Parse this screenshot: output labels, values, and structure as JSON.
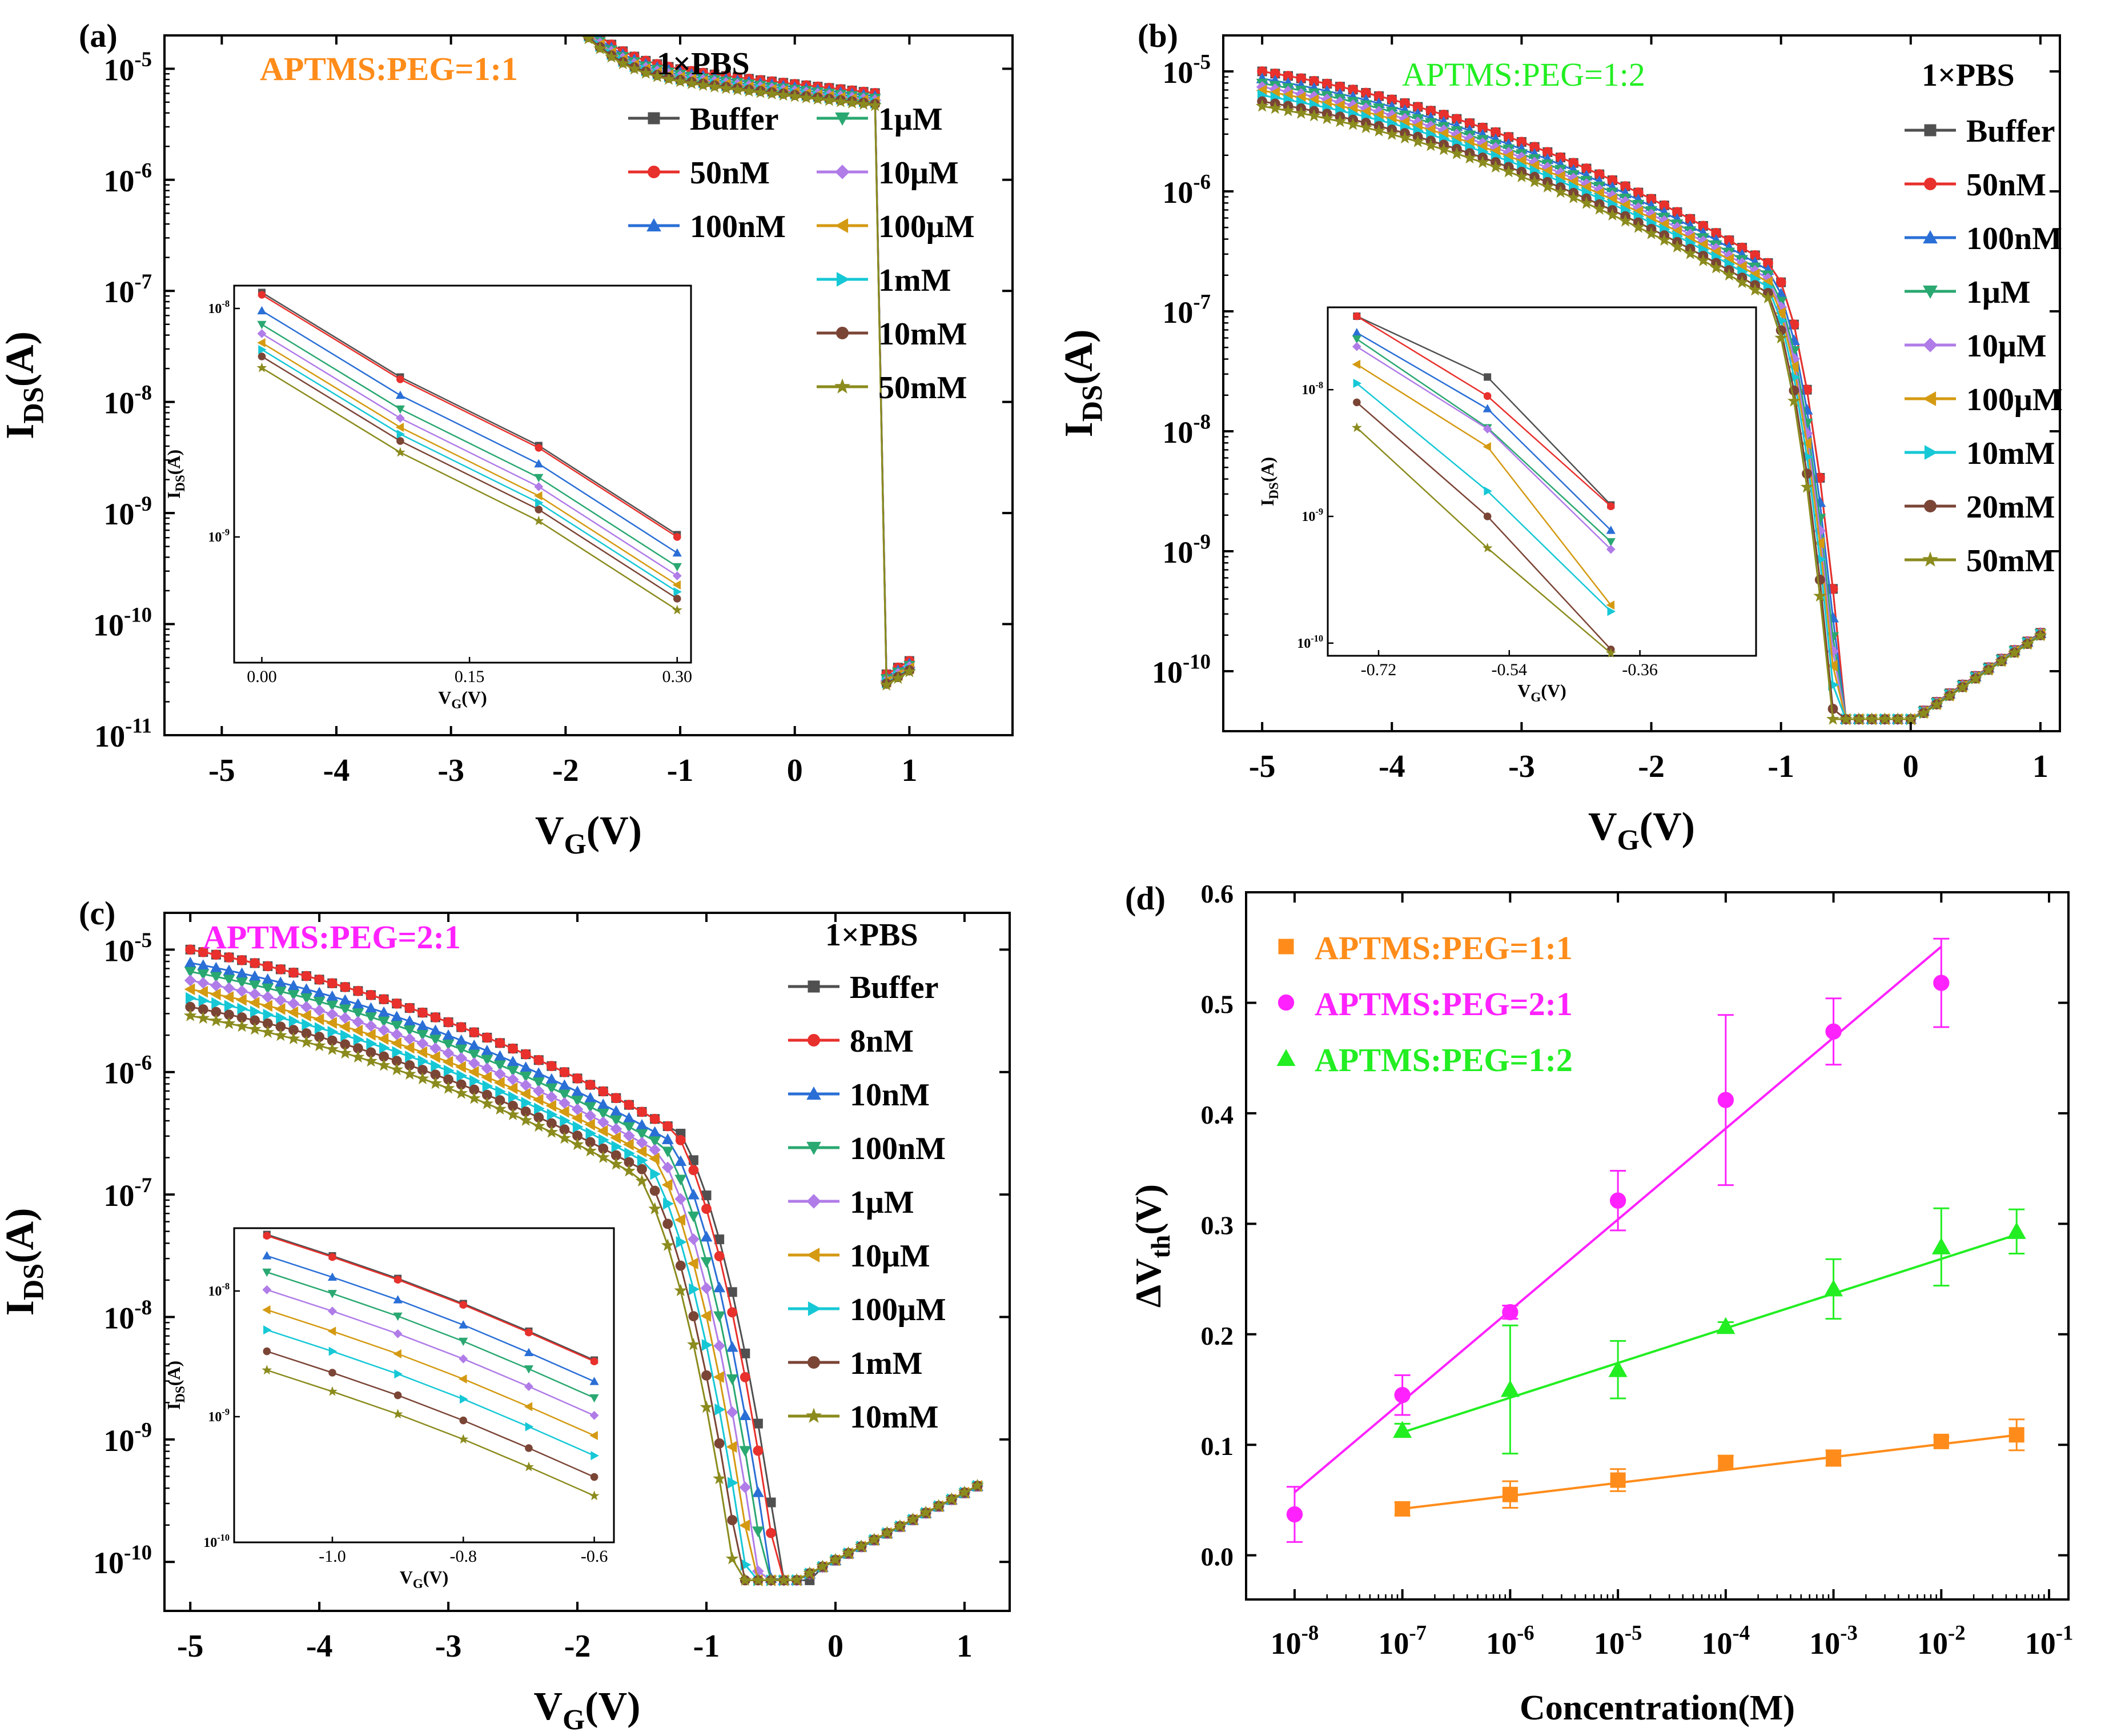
{
  "figure": {
    "panels_note": "Four-panel figure: transfer curves (a,b,c) and threshold-shift vs concentration (d)"
  },
  "chart_data": [
    {
      "id": "a",
      "type": "line",
      "panel_label": "(a)",
      "title": "APTMS:PEG=1:1",
      "title_color": "#ff8c1a",
      "legend_title": "1×PBS",
      "xlabel_main": "V",
      "xlabel_sub": "G",
      "xlabel_tail": "(V)",
      "ylabel_main": "I",
      "ylabel_sub": "DS",
      "ylabel_tail": "(A)",
      "yscale": "log",
      "xlim": [
        -5.5,
        1.9
      ],
      "ylim_exp": [
        -11,
        -4.7
      ],
      "xticks": [
        -5,
        -4,
        -3,
        -2,
        -1,
        0,
        1
      ],
      "yticks_exp": [
        -11,
        -10,
        -9,
        -8,
        -7,
        -6,
        -5
      ],
      "legend_columns": 2,
      "curve_model": "a",
      "series": [
        {
          "name": "Buffer",
          "color": "#505050",
          "marker": "square",
          "offset": 0.0
        },
        {
          "name": "50nM",
          "color": "#e8302c",
          "marker": "circle",
          "offset": 0.0
        },
        {
          "name": "100nM",
          "color": "#2a6fd6",
          "marker": "triangle-up",
          "offset": -0.08
        },
        {
          "name": "1μM",
          "color": "#2aa871",
          "marker": "triangle-down",
          "offset": -0.14
        },
        {
          "name": "10μM",
          "color": "#b07ce8",
          "marker": "diamond",
          "offset": -0.18
        },
        {
          "name": "100μM",
          "color": "#d49a12",
          "marker": "triangle-left",
          "offset": -0.22
        },
        {
          "name": "1mM",
          "color": "#16c8d6",
          "marker": "triangle-right",
          "offset": -0.25
        },
        {
          "name": "10mM",
          "color": "#7b4536",
          "marker": "circle",
          "offset": -0.28
        },
        {
          "name": "50mM",
          "color": "#8b8b1e",
          "marker": "star",
          "offset": -0.32
        }
      ],
      "inset": {
        "xlim": [
          -0.02,
          0.31
        ],
        "ylim_exp": [
          -9.55,
          -7.9
        ],
        "xticks": [
          0.0,
          0.15,
          0.3
        ],
        "xtick_labels": [
          "0.00",
          "0.15",
          "0.30"
        ],
        "yticks_exp": [
          -8,
          -9
        ],
        "xlabel_main": "V",
        "xlabel_sub": "G",
        "xlabel_tail": "(V)",
        "ylabel_main": "I",
        "ylabel_sub": "DS",
        "ylabel_tail": "(A)",
        "x": [
          0.0,
          0.1,
          0.2,
          0.3
        ],
        "base_log": [
          -7.93,
          -8.3,
          -8.6,
          -8.99
        ],
        "offsets": [
          0.0,
          -0.01,
          -0.08,
          -0.14,
          -0.18,
          -0.22,
          -0.25,
          -0.28,
          -0.33
        ]
      }
    },
    {
      "id": "b",
      "type": "line",
      "panel_label": "(b)",
      "title": "APTMS:PEG=1:2",
      "title_color": "#22ee22",
      "legend_title": "1×PBS",
      "xlabel_main": "V",
      "xlabel_sub": "G",
      "xlabel_tail": "(V)",
      "ylabel_main": "I",
      "ylabel_sub": "DS",
      "ylabel_tail": "(A)",
      "yscale": "log",
      "xlim": [
        -5.3,
        1.15
      ],
      "ylim_exp": [
        -10.5,
        -4.7
      ],
      "xticks": [
        -5,
        -4,
        -3,
        -2,
        -1,
        0,
        1
      ],
      "yticks_exp": [
        -10,
        -9,
        -8,
        -7,
        -6,
        -5
      ],
      "legend_columns": 1,
      "curve_model": "b",
      "series": [
        {
          "name": "Buffer",
          "color": "#505050",
          "marker": "square",
          "offset": 0.0
        },
        {
          "name": "50nM",
          "color": "#e8302c",
          "marker": "circle",
          "offset": 0.0
        },
        {
          "name": "100nM",
          "color": "#2a6fd6",
          "marker": "triangle-up",
          "offset": -0.06
        },
        {
          "name": "1μM",
          "color": "#2aa871",
          "marker": "triangle-down",
          "offset": -0.1
        },
        {
          "name": "10μM",
          "color": "#b07ce8",
          "marker": "diamond",
          "offset": -0.13
        },
        {
          "name": "100μM",
          "color": "#d49a12",
          "marker": "triangle-left",
          "offset": -0.16
        },
        {
          "name": "10mM",
          "color": "#16c8d6",
          "marker": "triangle-right",
          "offset": -0.2
        },
        {
          "name": "20mM",
          "color": "#7b4536",
          "marker": "circle",
          "offset": -0.25
        },
        {
          "name": "50mM",
          "color": "#8b8b1e",
          "marker": "star",
          "offset": -0.29
        }
      ],
      "inset": {
        "xlim": [
          -0.79,
          -0.2
        ],
        "ylim_exp": [
          -10.1,
          -7.35
        ],
        "xticks": [
          -0.72,
          -0.54,
          -0.36
        ],
        "xtick_labels": [
          "-0.72",
          "-0.54",
          "-0.36"
        ],
        "yticks_exp": [
          -8,
          -9,
          -10
        ],
        "xlabel_main": "V",
        "xlabel_sub": "G",
        "xlabel_tail": "(V)",
        "ylabel_main": "I",
        "ylabel_sub": "DS",
        "ylabel_tail": "(A)",
        "x": [
          -0.75,
          -0.57,
          -0.4
        ],
        "per_series_log": [
          [
            -7.42,
            -7.9,
            -8.91
          ],
          [
            -7.42,
            -8.05,
            -8.92
          ],
          [
            -7.55,
            -8.15,
            -9.11
          ],
          [
            -7.6,
            -8.3,
            -9.2
          ],
          [
            -7.66,
            -8.31,
            -9.26
          ],
          [
            -7.8,
            -8.45,
            -9.7
          ],
          [
            -7.95,
            -8.8,
            -9.75
          ],
          [
            -8.1,
            -9.0,
            -10.05
          ],
          [
            -8.3,
            -9.25,
            -10.08
          ]
        ]
      }
    },
    {
      "id": "c",
      "type": "line",
      "panel_label": "(c)",
      "title": "APTMS:PEG=2:1",
      "title_color": "#ff22ff",
      "legend_title": "1×PBS",
      "xlabel_main": "V",
      "xlabel_sub": "G",
      "xlabel_tail": "(V)",
      "ylabel_main": "I",
      "ylabel_sub": "DS",
      "ylabel_tail": "(A)",
      "yscale": "log",
      "xlim": [
        -5.2,
        1.35
      ],
      "ylim_exp": [
        -10.4,
        -4.7
      ],
      "xticks": [
        -5,
        -4,
        -3,
        -2,
        -1,
        0,
        1
      ],
      "yticks_exp": [
        -10,
        -9,
        -8,
        -7,
        -6,
        -5
      ],
      "legend_columns": 1,
      "curve_model": "c",
      "series": [
        {
          "name": "Buffer",
          "color": "#505050",
          "marker": "square",
          "offset": 0.0
        },
        {
          "name": "8nM",
          "color": "#e8302c",
          "marker": "circle",
          "offset": 0.0
        },
        {
          "name": "10nM",
          "color": "#2a6fd6",
          "marker": "triangle-up",
          "offset": -0.06
        },
        {
          "name": "100nM",
          "color": "#2aa871",
          "marker": "triangle-down",
          "offset": -0.1
        },
        {
          "name": "1μM",
          "color": "#b07ce8",
          "marker": "diamond",
          "offset": -0.14
        },
        {
          "name": "10μM",
          "color": "#d49a12",
          "marker": "triangle-left",
          "offset": -0.18
        },
        {
          "name": "100μM",
          "color": "#16c8d6",
          "marker": "triangle-right",
          "offset": -0.22
        },
        {
          "name": "1mM",
          "color": "#7b4536",
          "marker": "circle",
          "offset": -0.26
        },
        {
          "name": "10mM",
          "color": "#8b8b1e",
          "marker": "star",
          "offset": -0.3
        }
      ],
      "inset": {
        "xlim": [
          -1.15,
          -0.57
        ],
        "ylim_exp": [
          -10.0,
          -7.5
        ],
        "xticks": [
          -1.0,
          -0.8,
          -0.6
        ],
        "xtick_labels": [
          "-1.0",
          "-0.8",
          "-0.6"
        ],
        "yticks_exp": [
          -8,
          -9,
          -10
        ],
        "xlabel_main": "V",
        "xlabel_sub": "G",
        "xlabel_tail": "(V)",
        "ylabel_main": "I",
        "ylabel_sub": "DS",
        "ylabel_tail": "(A)",
        "x": [
          -1.1,
          -1.0,
          -0.9,
          -0.8,
          -0.7,
          -0.6
        ],
        "base_log": [
          -7.55,
          -7.72,
          -7.9,
          -8.1,
          -8.32,
          -8.55
        ],
        "offsets": [
          0.0,
          -0.01,
          -0.17,
          -0.3,
          -0.44,
          -0.6,
          -0.76,
          -0.93,
          -1.08
        ]
      }
    },
    {
      "id": "d",
      "type": "scatter",
      "panel_label": "(d)",
      "xlabel": "Concentration(M)",
      "ylabel_main": "ΔV",
      "ylabel_sub": "th",
      "ylabel_tail": "(V)",
      "xscale": "log",
      "xlim_exp": [
        -8.45,
        -0.82
      ],
      "ylim": [
        -0.04,
        0.6
      ],
      "xticks_exp": [
        -8,
        -7,
        -6,
        -5,
        -4,
        -3,
        -2,
        -1
      ],
      "yticks": [
        0.0,
        0.1,
        0.2,
        0.3,
        0.4,
        0.5,
        0.6
      ],
      "ytick_labels": [
        "0.0",
        "0.1",
        "0.2",
        "0.3",
        "0.4",
        "0.5",
        "0.6"
      ],
      "series": [
        {
          "name": "APTMS:PEG=1:1",
          "color": "#ff8c1a",
          "marker": "square",
          "x_exp": [
            -7,
            -6,
            -5,
            -4,
            -3,
            -2,
            -1.301
          ],
          "y": [
            0.042,
            0.055,
            0.068,
            0.084,
            0.088,
            0.103,
            0.109
          ],
          "err": [
            0.006,
            0.012,
            0.01,
            0.006,
            0.007,
            0.004,
            0.014
          ],
          "fit": {
            "slope": 0.0117,
            "intercept": 0.124,
            "x_from": -7,
            "x_to": -1.301
          }
        },
        {
          "name": "APTMS:PEG=2:1",
          "color": "#ff22ff",
          "marker": "circle",
          "x_exp": [
            -8,
            -7,
            -6,
            -5,
            -4,
            -3,
            -2
          ],
          "y": [
            0.037,
            0.145,
            0.22,
            0.321,
            0.412,
            0.474,
            0.518
          ],
          "err": [
            0.025,
            0.018,
            0.006,
            0.027,
            0.077,
            0.03,
            0.04
          ],
          "fit": {
            "slope": 0.0823,
            "intercept": 0.7154,
            "x_from": -8,
            "x_to": -2
          }
        },
        {
          "name": "APTMS:PEG=1:2",
          "color": "#22ee22",
          "marker": "triangle-up",
          "x_exp": [
            -7,
            -6,
            -5,
            -4,
            -3,
            -2,
            -1.301
          ],
          "y": [
            0.113,
            0.15,
            0.168,
            0.207,
            0.241,
            0.279,
            0.293
          ],
          "err": [
            0.006,
            0.058,
            0.026,
            0.004,
            0.027,
            0.035,
            0.02
          ],
          "fit": {
            "slope": 0.0314,
            "intercept": 0.331,
            "x_from": -7,
            "x_to": -1.301
          }
        }
      ]
    }
  ]
}
